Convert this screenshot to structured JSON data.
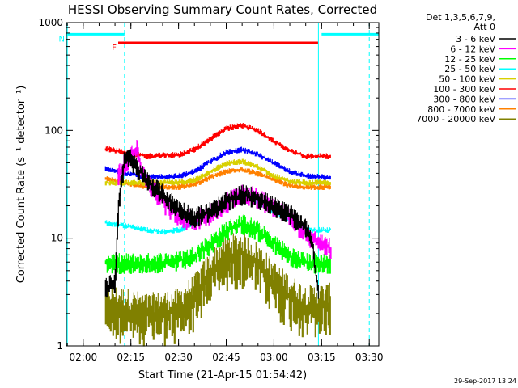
{
  "chart_data": {
    "type": "line",
    "title": "HESSI Observing Summary Count Rates, Corrected",
    "xlabel": "Start Time (21-Apr-15 01:54:42)",
    "ylabel": "Corrected Count Rate (s⁻¹ detector⁻¹)",
    "y_scale": "log",
    "ylim": [
      1,
      1000
    ],
    "xlim": [
      "01:54:42",
      "03:33:00"
    ],
    "y_ticks": [
      {
        "value": 1,
        "label": "1"
      },
      {
        "value": 10,
        "label": "10"
      },
      {
        "value": 100,
        "label": "100"
      },
      {
        "value": 1000,
        "label": "1000"
      }
    ],
    "x_ticks": [
      "02:00",
      "02:15",
      "02:30",
      "02:45",
      "03:00",
      "03:15",
      "03:30"
    ],
    "legend": {
      "position": "right",
      "header": [
        "Det 1,3,5,6,7,9,",
        "Att 0"
      ],
      "entries": [
        {
          "label": "3 - 6 keV",
          "color": "#000000"
        },
        {
          "label": "6 - 12 keV",
          "color": "#ff00ff"
        },
        {
          "label": "12 - 25 keV",
          "color": "#00ff00"
        },
        {
          "label": "25 - 50 keV",
          "color": "#00ffff"
        },
        {
          "label": "50 - 100 keV",
          "color": "#d8d000"
        },
        {
          "label": "100 - 300 keV",
          "color": "#ff0000"
        },
        {
          "label": "300 - 800 keV",
          "color": "#0000ff"
        },
        {
          "label": "800 - 7000 keV",
          "color": "#ff8000"
        },
        {
          "label": "7000 - 20000 keV",
          "color": "#808000"
        }
      ]
    },
    "series": [
      {
        "name": "3 - 6 keV",
        "color": "#000000",
        "x": [
          "02:07",
          "02:10",
          "02:11",
          "02:13",
          "02:15",
          "02:17",
          "02:20",
          "02:25",
          "02:30",
          "02:35",
          "02:40",
          "02:45",
          "02:50",
          "02:55",
          "03:00",
          "03:05",
          "03:10",
          "03:12",
          "03:14"
        ],
        "y": [
          3.5,
          4.0,
          20,
          60,
          55,
          45,
          35,
          26,
          19,
          16,
          18,
          22,
          26,
          24,
          20,
          17,
          13,
          10,
          3
        ]
      },
      {
        "name": "6 - 12 keV",
        "color": "#ff00ff",
        "x": [
          "02:11",
          "02:13",
          "02:15",
          "02:17",
          "02:18",
          "02:20",
          "02:25",
          "02:30",
          "02:35",
          "02:40",
          "02:45",
          "02:50",
          "02:55",
          "03:00",
          "03:05",
          "03:10",
          "03:15",
          "03:18"
        ],
        "y": [
          40,
          50,
          60,
          70,
          45,
          35,
          22,
          16,
          15,
          17,
          22,
          27,
          24,
          20,
          16,
          11,
          9,
          8
        ]
      },
      {
        "name": "12 - 25 keV",
        "color": "#00ff00",
        "x": [
          "02:07",
          "02:20",
          "02:30",
          "02:35",
          "02:40",
          "02:45",
          "02:50",
          "02:55",
          "03:00",
          "03:05",
          "03:10",
          "03:18"
        ],
        "y": [
          6,
          6,
          6.2,
          7,
          9,
          12,
          14,
          12,
          9,
          7,
          6,
          6
        ]
      },
      {
        "name": "25 - 50 keV",
        "color": "#00ffff",
        "x": [
          "02:07",
          "02:15",
          "02:20",
          "02:25",
          "02:30",
          "02:35",
          "02:40",
          "02:45",
          "02:50",
          "02:55",
          "03:00",
          "03:05",
          "03:10",
          "03:18"
        ],
        "y": [
          14,
          13,
          12,
          11.5,
          12,
          14,
          17,
          22,
          24,
          22,
          18,
          15,
          12,
          12
        ]
      },
      {
        "name": "50 - 100 keV",
        "color": "#d8d000",
        "x": [
          "02:07",
          "02:20",
          "02:30",
          "02:35",
          "02:40",
          "02:45",
          "02:50",
          "02:55",
          "03:00",
          "03:05",
          "03:10",
          "03:18"
        ],
        "y": [
          33,
          33,
          33,
          35,
          42,
          50,
          52,
          46,
          38,
          34,
          33,
          33
        ]
      },
      {
        "name": "100 - 300 keV",
        "color": "#ff0000",
        "x": [
          "02:07",
          "02:20",
          "02:30",
          "02:35",
          "02:40",
          "02:45",
          "02:50",
          "02:55",
          "03:00",
          "03:05",
          "03:10",
          "03:18"
        ],
        "y": [
          68,
          58,
          60,
          67,
          85,
          105,
          112,
          100,
          80,
          65,
          58,
          58
        ]
      },
      {
        "name": "300 - 800 keV",
        "color": "#0000ff",
        "x": [
          "02:07",
          "02:20",
          "02:30",
          "02:35",
          "02:40",
          "02:45",
          "02:50",
          "02:55",
          "03:00",
          "03:05",
          "03:10",
          "03:18"
        ],
        "y": [
          44,
          37,
          38,
          42,
          52,
          63,
          67,
          60,
          50,
          42,
          38,
          37
        ]
      },
      {
        "name": "800 - 7000 keV",
        "color": "#ff8000",
        "x": [
          "02:07",
          "02:20",
          "02:30",
          "02:35",
          "02:40",
          "02:45",
          "02:50",
          "02:55",
          "03:00",
          "03:05",
          "03:10",
          "03:18"
        ],
        "y": [
          36,
          30,
          30,
          32,
          37,
          42,
          44,
          40,
          35,
          31,
          30,
          30
        ]
      },
      {
        "name": "7000 - 20000 keV",
        "color": "#808000",
        "x": [
          "02:07",
          "02:20",
          "02:30",
          "02:35",
          "02:40",
          "02:45",
          "02:50",
          "02:55",
          "03:00",
          "03:05",
          "03:10",
          "03:18"
        ],
        "y": [
          2.5,
          2.0,
          2.2,
          3,
          5,
          7,
          7.5,
          6,
          4,
          3,
          2.4,
          2.5
        ]
      }
    ],
    "annotations": [
      {
        "type": "bar",
        "label": "F",
        "color": "#ff0000",
        "x_start": "02:11",
        "x_end": "03:14",
        "y": 650
      },
      {
        "type": "bar",
        "label": "N",
        "color": "#00ffff",
        "x_start": "01:54:42",
        "x_end": "02:13",
        "y": 780
      },
      {
        "type": "bar",
        "label": "",
        "color": "#00ffff",
        "x_start": "03:15",
        "x_end": "03:33",
        "y": 780
      },
      {
        "type": "vline",
        "style": "solid",
        "color": "#00ffff",
        "x": "01:55"
      },
      {
        "type": "vline",
        "style": "dashed",
        "color": "#00ffff",
        "x": "02:13"
      },
      {
        "type": "vline",
        "style": "solid",
        "color": "#00ffff",
        "x": "03:14"
      },
      {
        "type": "vline",
        "style": "dashed",
        "color": "#00ffff",
        "x": "03:30"
      }
    ],
    "grid": false
  },
  "footer": {
    "date_stamp": "29-Sep-2017 13:24"
  }
}
